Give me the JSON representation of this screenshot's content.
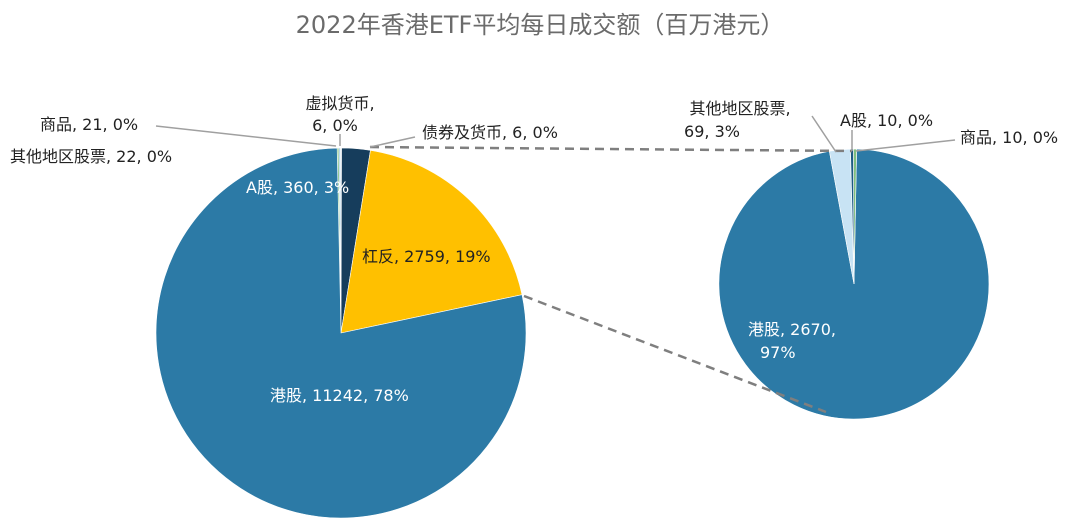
{
  "chart_data": {
    "type": "pie",
    "title": "2022年香港ETF平均每日成交额（百万港元）",
    "colors": {
      "hk": "#2c7aa6",
      "a": "#c8e3f4",
      "lev": "#ffc000",
      "bond": "#163d5c",
      "crypto": "#1d5a82",
      "commodity": "#7fbf7f",
      "other": "#9ec9e6",
      "line": "#a0a0a0",
      "dash": "#7f7f7f"
    },
    "main_pie": {
      "slices": [
        {
          "name": "其他地区股票",
          "value": 22,
          "pct": "0%",
          "color_key": "other",
          "label": "其他地区股票, 22, 0%"
        },
        {
          "name": "商品",
          "value": 21,
          "pct": "0%",
          "color_key": "commodity",
          "label": "商品, 21, 0%"
        },
        {
          "name": "虚拟货币",
          "value": 6,
          "pct": "0%",
          "color_key": "crypto",
          "label_lines": [
            "虚拟货币,",
            "6, 0%"
          ]
        },
        {
          "name": "债券及货币",
          "value": 6,
          "pct": "0%",
          "color_key": "bond",
          "label": "债券及货币, 6, 0%"
        },
        {
          "name": "A股",
          "value": 360,
          "pct": "3%",
          "color_key": "bond",
          "label": "A股, 360, 3%"
        },
        {
          "name": "杠反",
          "value": 2759,
          "pct": "19%",
          "color_key": "lev",
          "label": "杠反, 2759, 19%"
        },
        {
          "name": "港股",
          "value": 11242,
          "pct": "78%",
          "color_key": "hk",
          "label": "港股, 11242, 78%"
        }
      ]
    },
    "sub_pie": {
      "slices": [
        {
          "name": "A股",
          "value": 10,
          "pct": "0%",
          "color_key": "crypto",
          "label": "A股, 10, 0%"
        },
        {
          "name": "商品",
          "value": 10,
          "pct": "0%",
          "color_key": "commodity",
          "label": "商品, 10, 0%"
        },
        {
          "name": "港股",
          "value": 2670,
          "pct": "97%",
          "color_key": "hk",
          "label_lines": [
            "港股, 2670,",
            "97%"
          ]
        },
        {
          "name": "其他地区股票",
          "value": 69,
          "pct": "3%",
          "color_key": "a",
          "label_lines": [
            "其他地区股票,",
            "69, 3%"
          ]
        }
      ]
    }
  }
}
